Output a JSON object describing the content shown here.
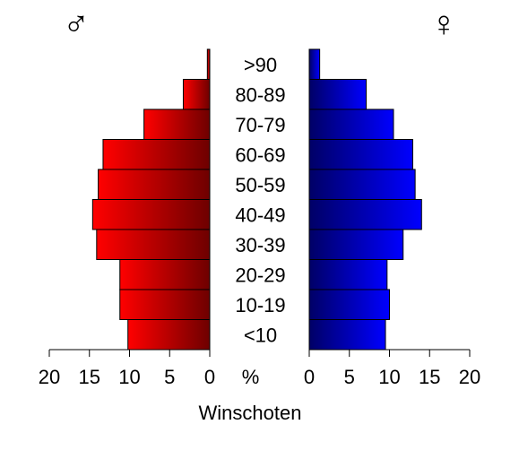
{
  "chart_data": {
    "type": "bar",
    "orientation": "horizontal",
    "subtype": "population-pyramid",
    "title": "",
    "xlabel": "Winschoten",
    "axis_unit_label": "%",
    "xlim": [
      0,
      20
    ],
    "x_ticks": [
      "20",
      "15",
      "10",
      "5",
      "0",
      "%",
      "0",
      "5",
      "10",
      "15",
      "20"
    ],
    "categories": [
      ">90",
      "80-89",
      "70-79",
      "60-69",
      "50-59",
      "40-49",
      "30-39",
      "20-29",
      "10-19",
      "<10"
    ],
    "series": [
      {
        "name": "♂",
        "side": "left",
        "color_light": "#ff0000",
        "color_dark": "#6e0000",
        "values": [
          0.3,
          3.3,
          8.2,
          13.3,
          13.9,
          14.6,
          14.1,
          11.2,
          11.2,
          10.2
        ]
      },
      {
        "name": "♀",
        "side": "right",
        "color_light": "#0000ff",
        "color_dark": "#000066",
        "values": [
          1.3,
          7.1,
          10.5,
          12.9,
          13.2,
          14.0,
          11.7,
          9.7,
          10.0,
          9.5
        ]
      }
    ],
    "male_symbol": "♂",
    "female_symbol": "♀"
  }
}
